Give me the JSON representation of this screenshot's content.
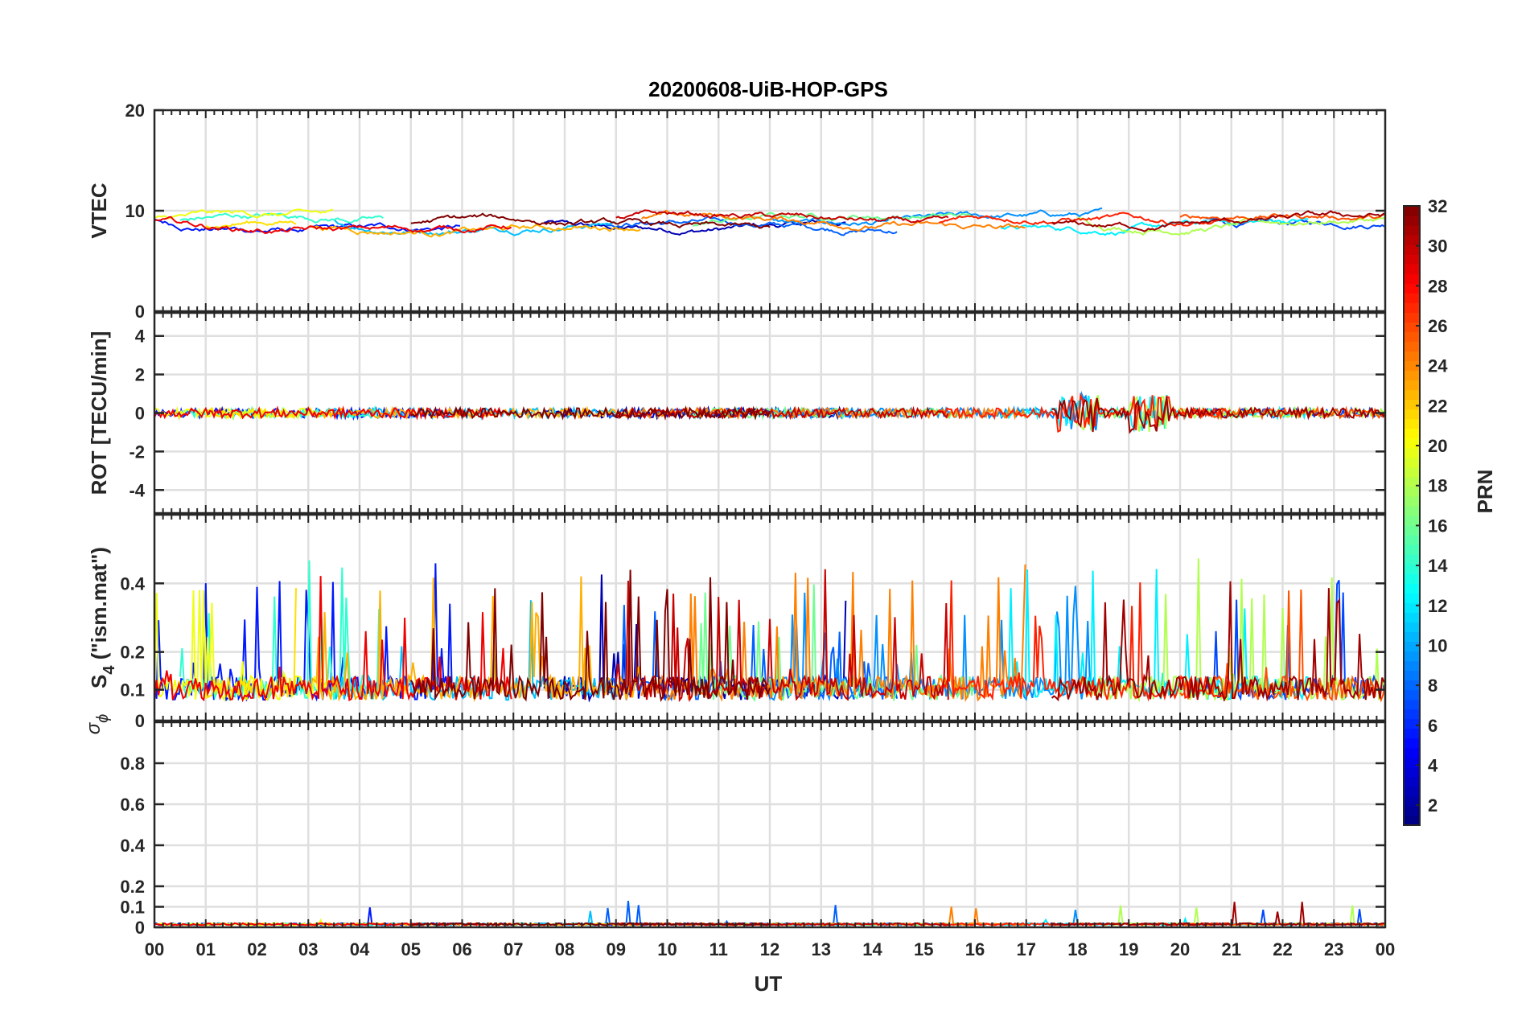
{
  "chart_data": {
    "type": "line",
    "title": "20200608-UiB-HOP-GPS",
    "xlabel": "UT",
    "x_ticks": [
      "00",
      "01",
      "02",
      "03",
      "04",
      "05",
      "06",
      "07",
      "08",
      "09",
      "10",
      "11",
      "12",
      "13",
      "14",
      "15",
      "16",
      "17",
      "18",
      "19",
      "20",
      "21",
      "22",
      "23",
      "00"
    ],
    "x_range_hours": [
      0,
      24
    ],
    "panels": [
      {
        "id": "vtec",
        "ylabel": "VTEC",
        "ylim": [
          0,
          20
        ],
        "ytick_values": [
          0,
          10,
          20
        ],
        "ytick_labels": [
          "0",
          "10",
          "20"
        ],
        "grid_values": [
          0,
          10,
          20
        ],
        "baseline": 8.8,
        "noise": 0.5
      },
      {
        "id": "rot",
        "ylabel": "ROT [TECU/min]",
        "ylim": [
          -5.2,
          5.2
        ],
        "ytick_values": [
          -4,
          -2,
          0,
          2,
          4
        ],
        "ytick_labels": [
          "-4",
          "-2",
          "0",
          "2",
          "4"
        ],
        "grid_values": [
          -4,
          -2,
          0,
          2,
          4
        ],
        "baseline": 0,
        "noise": 0.25
      },
      {
        "id": "s4",
        "ylabel_main": "S",
        "ylabel_sub": "4",
        "ylabel_rest": " (\"ism.mat\")",
        "ylim": [
          0,
          0.6
        ],
        "ytick_values": [
          0,
          0.09,
          0.2,
          0.4
        ],
        "ytick_labels": [
          "0",
          "0.1",
          "0.2",
          "0.4"
        ],
        "grid_values": [
          0.09,
          0.2,
          0.4
        ],
        "baseline": 0.1,
        "noise": 0.07
      },
      {
        "id": "sigma",
        "ylabel_main": "σ",
        "ylabel_sub": "ϕ",
        "ylim": [
          0,
          1
        ],
        "ytick_values": [
          0,
          0.1,
          0.2,
          0.4,
          0.6,
          0.8
        ],
        "ytick_labels": [
          "0",
          "0.1",
          "0.2",
          "0.4",
          "0.6",
          "0.8"
        ],
        "grid_values": [
          0.1,
          0.2,
          0.4,
          0.6,
          0.8
        ],
        "baseline": 0.02,
        "noise": 0.01
      }
    ],
    "colorbar": {
      "label": "PRN",
      "range": [
        1,
        32
      ],
      "tick_values": [
        2,
        4,
        6,
        8,
        10,
        12,
        14,
        16,
        18,
        20,
        22,
        24,
        26,
        28,
        30,
        32
      ],
      "tick_labels": [
        "2",
        "4",
        "6",
        "8",
        "10",
        "12",
        "14",
        "16",
        "18",
        "20",
        "22",
        "24",
        "26",
        "28",
        "30",
        "32"
      ],
      "colormap": "jet"
    },
    "series": [
      {
        "prn": 2,
        "color": "#0000b4",
        "start": 7.6,
        "end": 13.5
      },
      {
        "prn": 4,
        "color": "#0018ff",
        "start": 0.0,
        "end": 6.0
      },
      {
        "prn": 5,
        "color": "#0048ff",
        "start": 20.5,
        "end": 24.0
      },
      {
        "prn": 6,
        "color": "#0060ff",
        "start": 8.8,
        "end": 14.5
      },
      {
        "prn": 8,
        "color": "#0090ff",
        "start": 12.0,
        "end": 18.5
      },
      {
        "prn": 10,
        "color": "#00c0ff",
        "start": 3.5,
        "end": 9.0
      },
      {
        "prn": 12,
        "color": "#00f0ff",
        "start": 16.5,
        "end": 22.5
      },
      {
        "prn": 14,
        "color": "#30ffcf",
        "start": 0.5,
        "end": 4.5
      },
      {
        "prn": 16,
        "color": "#6fff90",
        "start": 10.5,
        "end": 16.0
      },
      {
        "prn": 18,
        "color": "#b0ff50",
        "start": 18.0,
        "end": 24.0
      },
      {
        "prn": 20,
        "color": "#efff10",
        "start": 0.0,
        "end": 3.5
      },
      {
        "prn": 21,
        "color": "#ffe000",
        "start": 1.0,
        "end": 2.8
      },
      {
        "prn": 22,
        "color": "#ffb000",
        "start": 3.0,
        "end": 9.5
      },
      {
        "prn": 24,
        "color": "#ff7f00",
        "start": 9.5,
        "end": 17.0
      },
      {
        "prn": 26,
        "color": "#ff5000",
        "start": 20.0,
        "end": 24.0
      },
      {
        "prn": 28,
        "color": "#ff2000",
        "start": 15.3,
        "end": 21.0
      },
      {
        "prn": 29,
        "color": "#f00000",
        "start": 0.0,
        "end": 7.0
      },
      {
        "prn": 30,
        "color": "#c80000",
        "start": 9.0,
        "end": 15.5
      },
      {
        "prn": 31,
        "color": "#a00000",
        "start": 17.5,
        "end": 24.0
      },
      {
        "prn": 32,
        "color": "#800000",
        "start": 5.0,
        "end": 12.0
      }
    ]
  }
}
